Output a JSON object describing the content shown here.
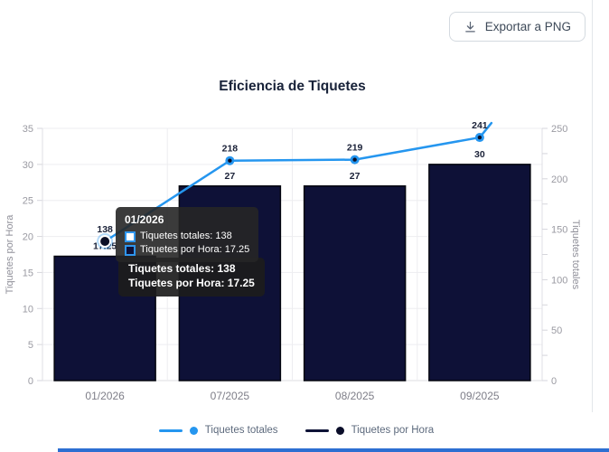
{
  "export_button": {
    "label": "Exportar a PNG"
  },
  "chart_data": {
    "type": "bar",
    "combo": "bar+line",
    "title": "Eficiencia de Tiquetes",
    "categories": [
      "01/2026",
      "07/2025",
      "08/2025",
      "09/2025"
    ],
    "series": [
      {
        "name": "Tiquetes totales",
        "type": "line",
        "axis": "right",
        "values": [
          138,
          218,
          219,
          241
        ]
      },
      {
        "name": "Tiquetes por Hora",
        "type": "bar",
        "axis": "left",
        "values": [
          17.25,
          27,
          27,
          30
        ]
      }
    ],
    "left_axis": {
      "label": "Tiquetes por Hora",
      "min": 0,
      "max": 35,
      "ticks": [
        0,
        5,
        10,
        15,
        20,
        25,
        30,
        35
      ]
    },
    "right_axis": {
      "label": "Tiquetes totales",
      "min": 0,
      "max": 250,
      "ticks": [
        0,
        50,
        100,
        150,
        200,
        250
      ],
      "minor_tick_step": 25
    },
    "grid": true,
    "legend_position": "bottom",
    "hovered_category_index": 0
  },
  "tooltip": {
    "header": "01/2026",
    "items": [
      {
        "text": "Tiquetes totales: 138",
        "marker_fill": "#ffffff"
      },
      {
        "text": "Tiquetes por Hora: 17.25",
        "marker_fill": "#0e1137"
      }
    ],
    "summary": [
      "Tiquetes totales: 138",
      "Tiquetes por Hora: 17.25"
    ]
  },
  "legend": [
    {
      "label": "Tiquetes totales",
      "color": "#2596ef",
      "dot_color": "#2596ef"
    },
    {
      "label": "Tiquetes por Hora",
      "color": "#0e1337",
      "dot_color": "#0a0d29"
    }
  ],
  "colors": {
    "line": "#2596ef",
    "point_core": "#0b0f26",
    "bar_fill": "#0e1137",
    "bar_border": "#04060f",
    "grid": "#ededf0",
    "axis_line": "#dfdfe4",
    "tick": "#d6d6dc",
    "tick_label": "#9a9aa2",
    "axis_title": "#8f8f99",
    "x_label": "#7e7e88",
    "data_label": "#1a2138",
    "tooltip_marker_border": "#2f96ee"
  }
}
